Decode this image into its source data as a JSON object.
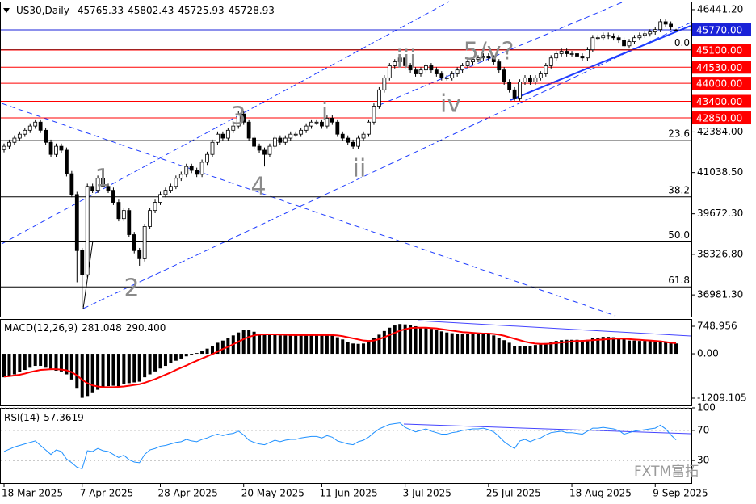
{
  "chart_data": [
    {
      "type": "candlestick",
      "symbol": "US30,Daily",
      "open": [
        41800,
        41910,
        42040,
        42180,
        42310,
        42440,
        42580,
        42710,
        42440,
        42040,
        41640,
        41910,
        41780,
        41000,
        40310,
        38450,
        37650,
        40580,
        40450,
        40850,
        40580,
        40450,
        40050,
        39510,
        39780,
        38980,
        38450,
        38180,
        39250,
        39780,
        40050,
        40310,
        40450,
        40580,
        40850,
        40980,
        41240,
        41110,
        40980,
        41380,
        41640,
        42040,
        42310,
        42180,
        42440,
        42580,
        42980,
        42710,
        42180,
        41910,
        41780,
        41640,
        41910,
        42180,
        42040,
        42180,
        42310,
        42310,
        42440,
        42580,
        42710,
        42710,
        42580,
        42840,
        42710,
        42310,
        42180,
        42040,
        41910,
        42180,
        42310,
        42710,
        43240,
        43780,
        44180,
        44580,
        44710,
        44840,
        44580,
        44440,
        44310,
        44440,
        44580,
        44440,
        44310,
        44180,
        44180,
        44310,
        44440,
        44580,
        44710,
        44790,
        44840,
        44900,
        44840,
        44710,
        44440,
        44040,
        43780,
        43510,
        44040,
        44180,
        44040,
        44180,
        44310,
        44580,
        44840,
        44980,
        45060,
        44980,
        44980,
        44900,
        44840,
        45110,
        45510,
        45510,
        45590,
        45560,
        45510,
        45430,
        45240,
        45380,
        45510,
        45590,
        45640,
        45700,
        45780,
        46040,
        45960,
        45765.33
      ],
      "high": [
        42000,
        42130,
        42270,
        42400,
        42530,
        42670,
        42800,
        42800,
        42530,
        42130,
        42000,
        42000,
        41870,
        41090,
        40400,
        38540,
        40670,
        40670,
        40940,
        40940,
        40670,
        40540,
        40140,
        39870,
        39870,
        39070,
        38540,
        39340,
        39870,
        40140,
        40400,
        40540,
        40670,
        40940,
        41070,
        41330,
        41330,
        41200,
        41470,
        41730,
        42130,
        42400,
        42400,
        42530,
        42670,
        43070,
        43070,
        42800,
        42270,
        42000,
        41870,
        42000,
        42270,
        42270,
        42270,
        42400,
        42400,
        42530,
        42670,
        42800,
        42800,
        42800,
        42930,
        42930,
        42800,
        42400,
        42270,
        42130,
        42270,
        42400,
        42800,
        43330,
        43870,
        44270,
        44670,
        44800,
        44930,
        44930,
        44670,
        44530,
        44530,
        44670,
        44670,
        44530,
        44400,
        44270,
        44400,
        44530,
        44670,
        44800,
        44880,
        44930,
        44990,
        44990,
        44930,
        44800,
        44530,
        44130,
        43870,
        44130,
        44270,
        44270,
        44270,
        44400,
        44670,
        44930,
        45070,
        45150,
        45150,
        45070,
        45070,
        44990,
        45200,
        45600,
        45600,
        45680,
        45680,
        45650,
        45600,
        45520,
        45470,
        45600,
        45680,
        45730,
        45790,
        45870,
        46130,
        46130,
        46050,
        45802.43
      ],
      "low": [
        41710,
        41820,
        41950,
        42090,
        42220,
        42350,
        42490,
        42350,
        41950,
        41550,
        41550,
        41690,
        40910,
        40220,
        37400,
        36580,
        37560,
        40360,
        40360,
        40490,
        40360,
        39960,
        39420,
        39420,
        38890,
        38360,
        37950,
        38090,
        39160,
        39690,
        39960,
        40220,
        40360,
        40490,
        40760,
        40890,
        41020,
        40890,
        40890,
        41290,
        41550,
        41950,
        42090,
        42090,
        42350,
        42490,
        42620,
        42090,
        41820,
        41690,
        41240,
        41550,
        41820,
        41950,
        41950,
        42090,
        42220,
        42220,
        42350,
        42490,
        42620,
        42490,
        42490,
        42620,
        42220,
        42090,
        41950,
        41820,
        41820,
        42090,
        42220,
        42620,
        43150,
        43690,
        44090,
        44490,
        44620,
        44490,
        44350,
        44220,
        44220,
        44350,
        44350,
        44220,
        44090,
        44090,
        44090,
        44220,
        44350,
        44490,
        44620,
        44700,
        44750,
        44750,
        44620,
        44350,
        43950,
        43690,
        43420,
        43420,
        43950,
        43950,
        43950,
        44090,
        44220,
        44490,
        44750,
        44890,
        44890,
        44890,
        44810,
        44750,
        44750,
        45020,
        45420,
        45420,
        45470,
        45420,
        45340,
        45150,
        45150,
        45290,
        45420,
        45500,
        45550,
        45610,
        45690,
        45870,
        45770,
        45725.93
      ],
      "close": [
        41910,
        42040,
        42180,
        42310,
        42440,
        42580,
        42710,
        42440,
        42040,
        41640,
        41910,
        41780,
        41000,
        40310,
        38450,
        37650,
        40580,
        40450,
        40850,
        40580,
        40450,
        40050,
        39510,
        39780,
        38980,
        38450,
        38180,
        39250,
        39780,
        40050,
        40310,
        40450,
        40580,
        40850,
        40980,
        41240,
        41110,
        40980,
        41380,
        41640,
        42040,
        42310,
        42180,
        42440,
        42580,
        42980,
        42710,
        42180,
        41910,
        41780,
        41640,
        41910,
        42180,
        42040,
        42180,
        42310,
        42310,
        42440,
        42580,
        42710,
        42710,
        42580,
        42840,
        42710,
        42310,
        42180,
        42040,
        41910,
        42180,
        42310,
        42710,
        43240,
        43780,
        44180,
        44580,
        44710,
        44840,
        44580,
        44440,
        44310,
        44440,
        44580,
        44440,
        44310,
        44180,
        44180,
        44310,
        44440,
        44580,
        44710,
        44790,
        44840,
        44900,
        44840,
        44710,
        44440,
        44040,
        43780,
        43510,
        44040,
        44180,
        44040,
        44180,
        44310,
        44580,
        44840,
        44980,
        45060,
        44980,
        44980,
        44900,
        44840,
        45110,
        45510,
        45510,
        45590,
        45560,
        45510,
        45430,
        45240,
        45380,
        45510,
        45590,
        45640,
        45700,
        45780,
        46040,
        45960,
        45860,
        45728.93
      ],
      "up_color": "#ffffff",
      "down_color": "#000000",
      "ylim": [
        36261.7,
        46707.7
      ],
      "yticks": [
        {
          "value": 46441.2,
          "label": "46441.20"
        },
        {
          "value": 42384,
          "label": "42384.00"
        },
        {
          "value": 41038.5,
          "label": "41038.50"
        },
        {
          "value": 39672.3,
          "label": "39672.30"
        },
        {
          "value": 38326.8,
          "label": "38326.80"
        },
        {
          "value": 36981.3,
          "label": "36981.30"
        }
      ],
      "levels": [
        {
          "value": 45770,
          "label": "45770.00",
          "color": "#1a22d8"
        },
        {
          "value": 45100,
          "label": "45100.00",
          "color": "#ff0000"
        },
        {
          "value": 44530,
          "label": "44530.00",
          "color": "#ff0000"
        },
        {
          "value": 44000,
          "label": "44000.00",
          "color": "#ff0000"
        },
        {
          "value": 43400,
          "label": "43400.00",
          "color": "#ff0000"
        },
        {
          "value": 42850,
          "label": "42850.00",
          "color": "#ff0000"
        }
      ],
      "fib_levels": [
        {
          "value": 45109,
          "label": "0.0"
        },
        {
          "value": 42097,
          "label": "23.6"
        },
        {
          "value": 40231,
          "label": "38.2"
        },
        {
          "value": 38739,
          "label": "50.0"
        },
        {
          "value": 37246,
          "label": "61.8"
        }
      ],
      "annotations": [
        "1",
        "2",
        "3",
        "4",
        "i",
        "ii",
        "iii",
        "iv",
        "5/v?"
      ],
      "watermark": "FXTM富拓"
    },
    {
      "type": "macd",
      "title": "MACD(12,26,9)",
      "title_values": [
        "281.048",
        "290.400"
      ],
      "series": [
        {
          "name": "MACD",
          "color": "#000000",
          "values": [
            -640,
            -600,
            -560,
            -500,
            -440,
            -380,
            -330,
            -330,
            -380,
            -440,
            -460,
            -480,
            -560,
            -700,
            -950,
            -1200,
            -1150,
            -1050,
            -980,
            -920,
            -880,
            -870,
            -880,
            -830,
            -800,
            -780,
            -760,
            -640,
            -560,
            -480,
            -400,
            -330,
            -260,
            -190,
            -130,
            -70,
            -20,
            20,
            80,
            140,
            220,
            300,
            360,
            430,
            500,
            580,
            640,
            650,
            600,
            550,
            520,
            510,
            510,
            500,
            500,
            500,
            500,
            500,
            510,
            520,
            520,
            510,
            520,
            500,
            450,
            390,
            330,
            280,
            270,
            280,
            330,
            420,
            520,
            620,
            710,
            770,
            810,
            800,
            780,
            750,
            720,
            700,
            680,
            650,
            610,
            580,
            560,
            550,
            540,
            540,
            540,
            540,
            540,
            530,
            500,
            440,
            370,
            300,
            220,
            220,
            220,
            220,
            240,
            260,
            290,
            320,
            350,
            370,
            380,
            380,
            380,
            370,
            380,
            420,
            440,
            460,
            460,
            450,
            430,
            400,
            360,
            360,
            350,
            350,
            350,
            340,
            330,
            320,
            300,
            281.048
          ]
        },
        {
          "name": "Signal",
          "color": "#ff0000",
          "values": [
            -620,
            -610,
            -590,
            -570,
            -540,
            -500,
            -470,
            -440,
            -430,
            -420,
            -420,
            -430,
            -450,
            -500,
            -590,
            -710,
            -800,
            -860,
            -890,
            -910,
            -910,
            -910,
            -900,
            -890,
            -870,
            -850,
            -830,
            -790,
            -740,
            -690,
            -630,
            -570,
            -510,
            -440,
            -380,
            -320,
            -250,
            -190,
            -130,
            -70,
            -10,
            60,
            130,
            190,
            260,
            330,
            400,
            460,
            500,
            520,
            530,
            530,
            530,
            520,
            520,
            510,
            510,
            510,
            510,
            510,
            510,
            510,
            510,
            510,
            500,
            480,
            450,
            420,
            390,
            360,
            350,
            360,
            400,
            450,
            510,
            570,
            630,
            670,
            700,
            710,
            710,
            710,
            700,
            690,
            670,
            650,
            630,
            610,
            590,
            580,
            570,
            560,
            550,
            550,
            540,
            520,
            490,
            450,
            410,
            370,
            330,
            300,
            280,
            270,
            270,
            280,
            290,
            310,
            320,
            340,
            350,
            350,
            360,
            370,
            380,
            390,
            400,
            410,
            410,
            410,
            400,
            390,
            380,
            370,
            360,
            350,
            340,
            320,
            300,
            290.4
          ]
        }
      ],
      "ylim": [
        -1407,
        947
      ],
      "yticks": [
        748.956,
        {
          "value": 0,
          "label": "0.00"
        },
        -1209.105
      ]
    },
    {
      "type": "line",
      "title": "RSI(14)",
      "color": "#1e90ff",
      "values": [
        42,
        45,
        48,
        50,
        52,
        54,
        56,
        50,
        44,
        38,
        44,
        42,
        32,
        27,
        21,
        19,
        43,
        42,
        46,
        43,
        42,
        38,
        34,
        37,
        31,
        28,
        27,
        38,
        44,
        46,
        49,
        50,
        52,
        54,
        55,
        58,
        56,
        55,
        58,
        60,
        63,
        65,
        63,
        65,
        66,
        69,
        64,
        57,
        54,
        52,
        51,
        54,
        57,
        55,
        57,
        58,
        58,
        60,
        61,
        62,
        62,
        60,
        63,
        61,
        56,
        54,
        52,
        51,
        55,
        57,
        61,
        67,
        72,
        75,
        78,
        79,
        80,
        74,
        71,
        68,
        70,
        72,
        69,
        67,
        65,
        65,
        67,
        68,
        70,
        71,
        72,
        72,
        73,
        71,
        68,
        62,
        55,
        50,
        46,
        56,
        58,
        55,
        58,
        60,
        64,
        67,
        68,
        69,
        67,
        67,
        66,
        65,
        69,
        73,
        73,
        74,
        73,
        72,
        70,
        65,
        67,
        69,
        70,
        71,
        72,
        73,
        77,
        72,
        64,
        57.3619
      ],
      "ylim": [
        0,
        100
      ],
      "yticks": [
        100,
        70,
        30
      ],
      "xticks": [
        {
          "value": 0,
          "label": "18 Mar 2025"
        },
        {
          "value": 15,
          "label": "7 Apr 2025"
        },
        {
          "value": 30,
          "label": "28 Apr 2025"
        },
        {
          "value": 46,
          "label": "20 May 2025"
        },
        {
          "value": 61,
          "label": "11 Jun 2025"
        },
        {
          "value": 77,
          "label": "3 Jul 2025"
        },
        {
          "value": 93,
          "label": "25 Jul 2025"
        },
        {
          "value": 109,
          "label": "18 Aug 2025"
        },
        {
          "value": 125,
          "label": "9 Sep 2025"
        }
      ]
    }
  ]
}
